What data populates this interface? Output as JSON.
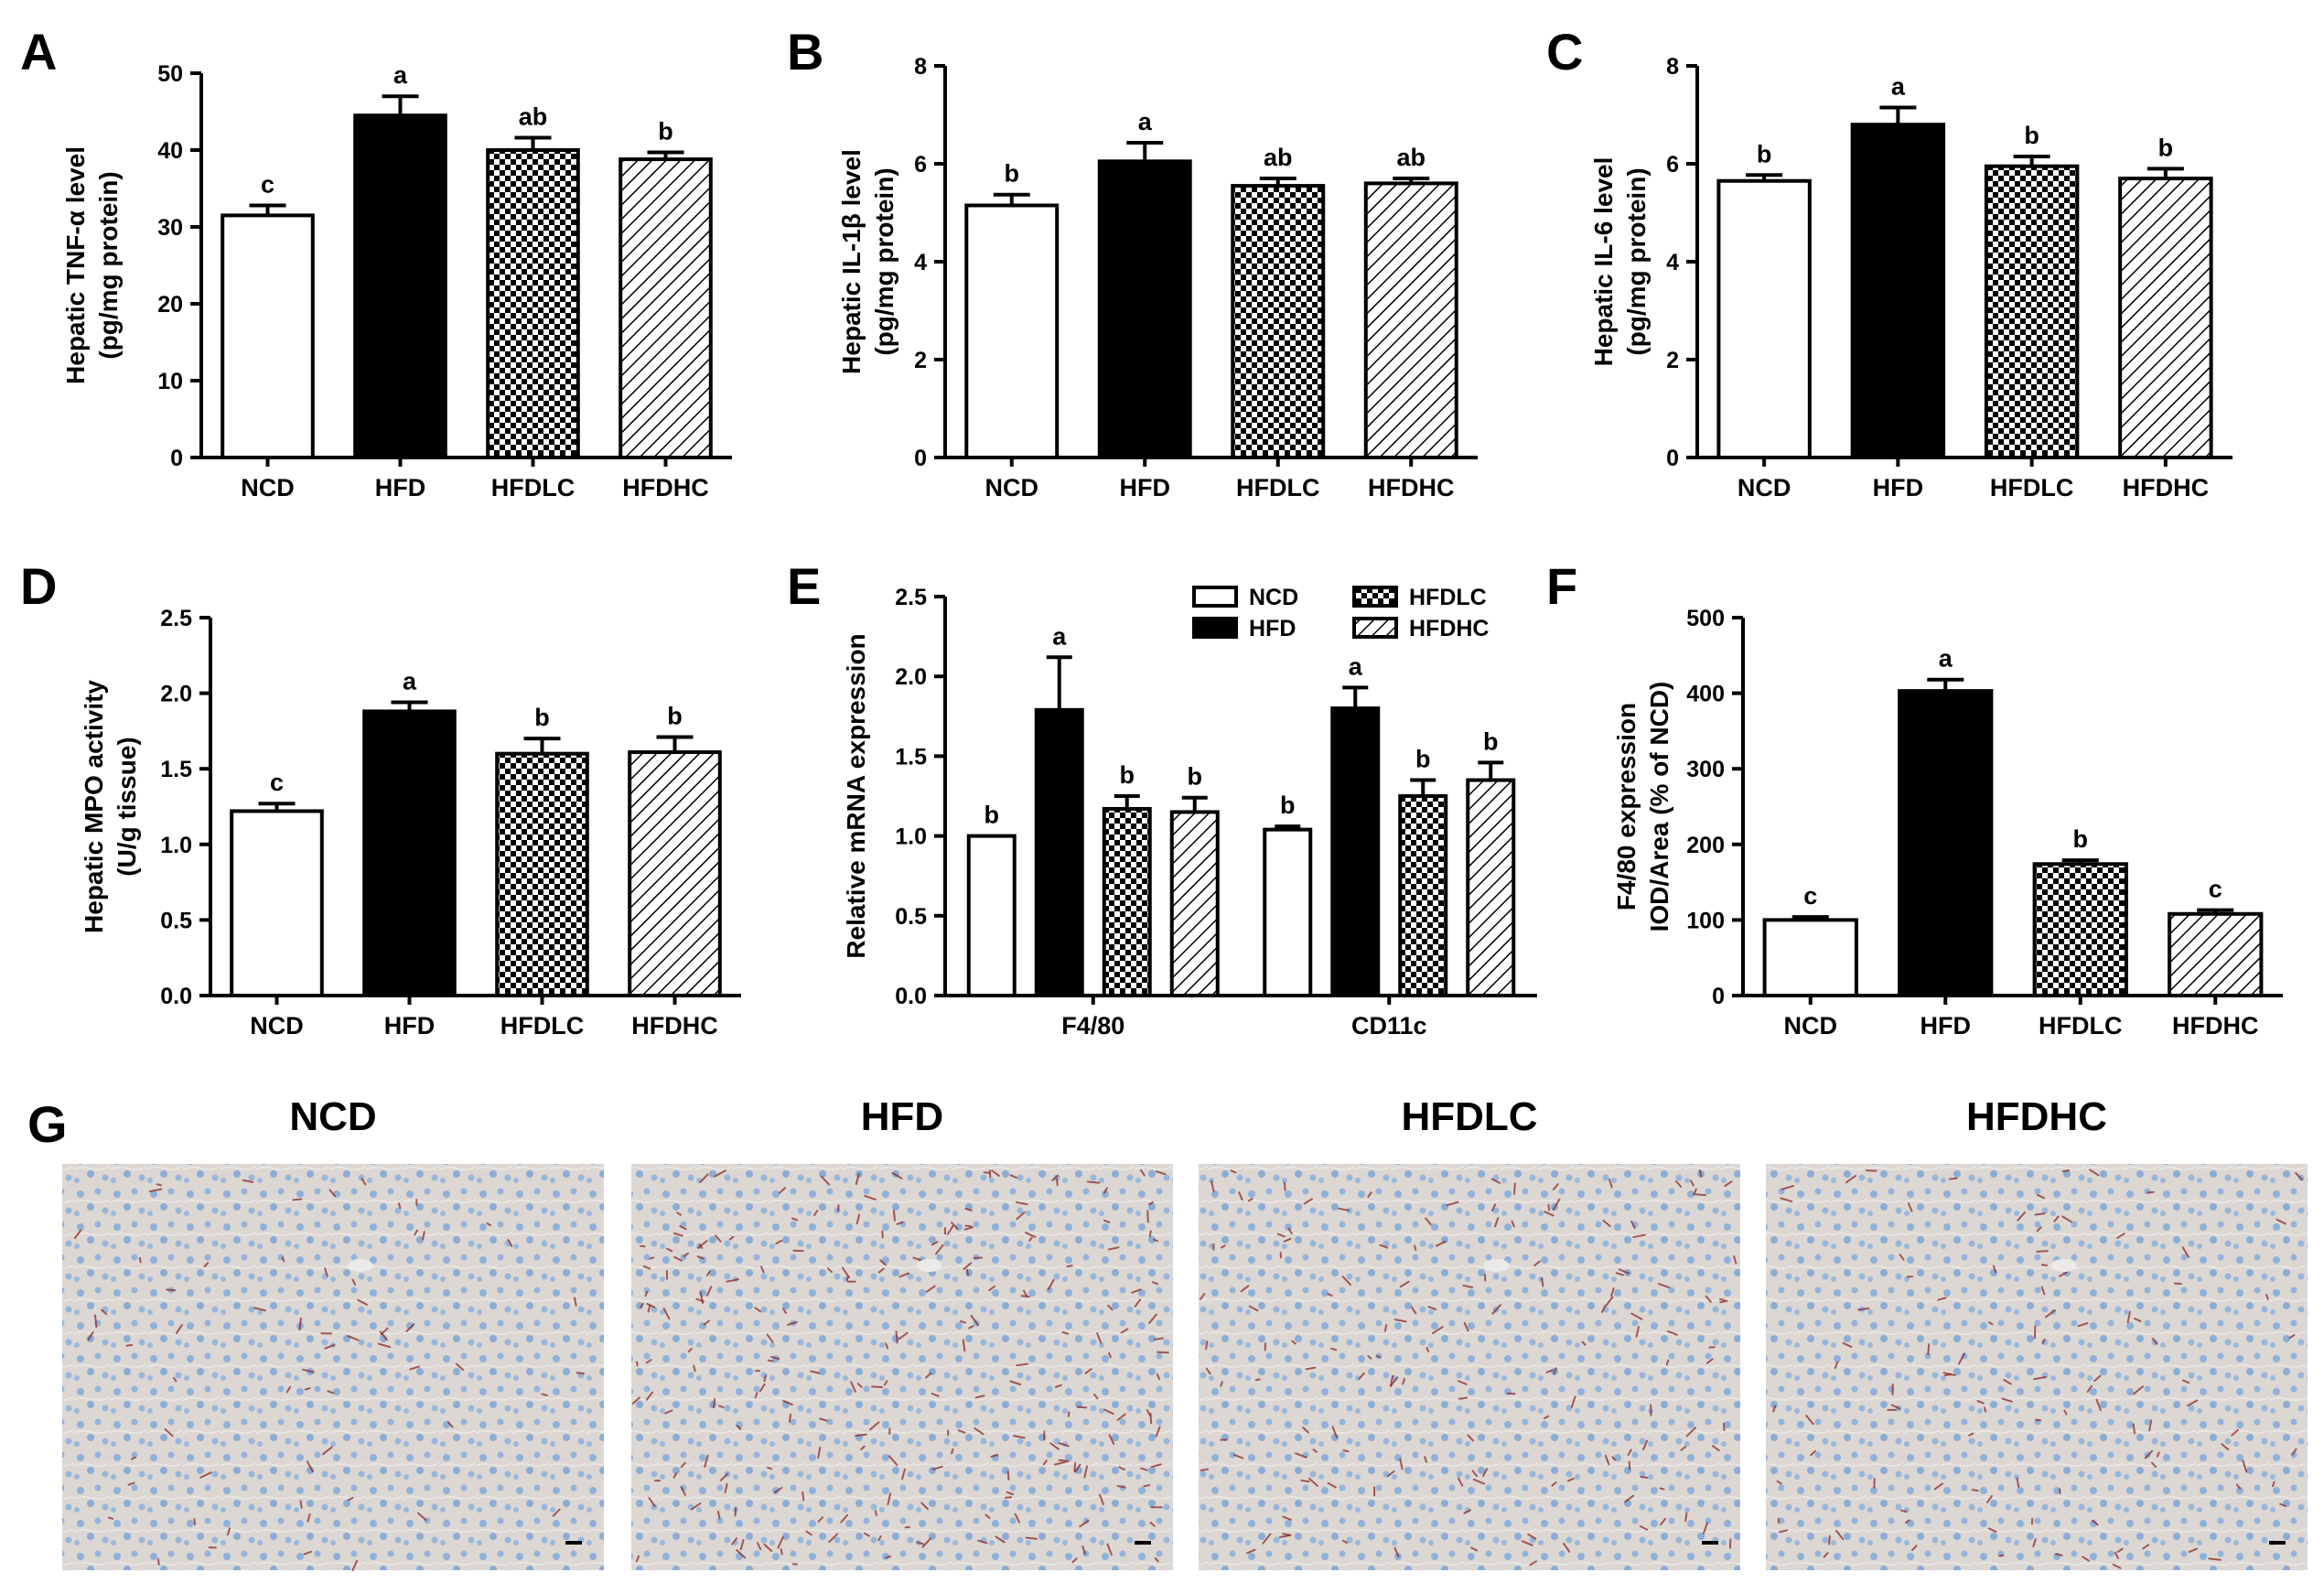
{
  "figure": {
    "panel_g": {
      "label": "G",
      "micrographs": [
        {
          "title": "NCD",
          "stain_level": 0.15
        },
        {
          "title": "HFD",
          "stain_level": 0.55
        },
        {
          "title": "HFDLC",
          "stain_level": 0.35
        },
        {
          "title": "HFDHC",
          "stain_level": 0.25
        }
      ]
    }
  },
  "colors": {
    "text": "#000000",
    "bar_open": "#ffffff",
    "bar_solid": "#000000",
    "micrograph_bg": "#dcd7d3",
    "nucleus": "#8fb0d8",
    "stain": "#8b2a2a"
  },
  "chart_data": [
    {
      "panel": "A",
      "type": "bar",
      "categories": [
        "NCD",
        "HFD",
        "HFDLC",
        "HFDHC"
      ],
      "values": [
        31.5,
        44.5,
        40.0,
        38.8
      ],
      "errors": [
        1.3,
        2.5,
        1.6,
        0.9
      ],
      "significance": [
        "c",
        "a",
        "ab",
        "b"
      ],
      "patterns": [
        "white",
        "black",
        "checker",
        "hatch"
      ],
      "ylabel": [
        "Hepatic TNF-α level",
        "(pg/mg protein)"
      ],
      "ylim": [
        0,
        50
      ],
      "yticks": [
        0,
        10,
        20,
        30,
        40,
        50
      ],
      "ytick_labels": [
        "0",
        "10",
        "20",
        "30",
        "40",
        "50"
      ]
    },
    {
      "panel": "B",
      "type": "bar",
      "categories": [
        "NCD",
        "HFD",
        "HFDLC",
        "HFDHC"
      ],
      "values": [
        5.15,
        6.05,
        5.55,
        5.6
      ],
      "errors": [
        0.22,
        0.38,
        0.15,
        0.1
      ],
      "significance": [
        "b",
        "a",
        "ab",
        "ab"
      ],
      "patterns": [
        "white",
        "black",
        "checker",
        "hatch"
      ],
      "ylabel": [
        "Hepatic IL-1β level",
        "(pg/mg protein)"
      ],
      "ylim": [
        0,
        8
      ],
      "yticks": [
        0,
        2,
        4,
        6,
        8
      ],
      "ytick_labels": [
        "0",
        "2",
        "4",
        "6",
        "8"
      ]
    },
    {
      "panel": "C",
      "type": "bar",
      "categories": [
        "NCD",
        "HFD",
        "HFDLC",
        "HFDHC"
      ],
      "values": [
        5.65,
        6.8,
        5.95,
        5.7
      ],
      "errors": [
        0.12,
        0.35,
        0.2,
        0.2
      ],
      "significance": [
        "b",
        "a",
        "b",
        "b"
      ],
      "patterns": [
        "white",
        "black",
        "checker",
        "hatch"
      ],
      "ylabel": [
        "Hepatic IL-6 level",
        "(pg/mg protein)"
      ],
      "ylim": [
        0,
        8
      ],
      "yticks": [
        0,
        2,
        4,
        6,
        8
      ],
      "ytick_labels": [
        "0",
        "2",
        "4",
        "6",
        "8"
      ]
    },
    {
      "panel": "D",
      "type": "bar",
      "categories": [
        "NCD",
        "HFD",
        "HFDLC",
        "HFDHC"
      ],
      "values": [
        1.22,
        1.88,
        1.6,
        1.61
      ],
      "errors": [
        0.05,
        0.06,
        0.1,
        0.1
      ],
      "significance": [
        "c",
        "a",
        "b",
        "b"
      ],
      "patterns": [
        "white",
        "black",
        "checker",
        "hatch"
      ],
      "ylabel": [
        "Hepatic MPO activity",
        "(U/g tissue)"
      ],
      "ylim": [
        0,
        2.5
      ],
      "yticks": [
        0,
        0.5,
        1.0,
        1.5,
        2.0,
        2.5
      ],
      "ytick_labels": [
        "0.0",
        "0.5",
        "1.0",
        "1.5",
        "2.0",
        "2.5"
      ]
    },
    {
      "panel": "E",
      "type": "bar",
      "categories": [
        "F4/80",
        "CD11c"
      ],
      "series": [
        {
          "name": "NCD",
          "pattern": "white",
          "values": [
            1.0,
            1.04
          ],
          "errors": [
            0,
            0.02
          ],
          "significance": [
            "b",
            "b"
          ]
        },
        {
          "name": "HFD",
          "pattern": "black",
          "values": [
            1.79,
            1.8
          ],
          "errors": [
            0.33,
            0.13
          ],
          "significance": [
            "a",
            "a"
          ]
        },
        {
          "name": "HFDLC",
          "pattern": "checker",
          "values": [
            1.17,
            1.25
          ],
          "errors": [
            0.08,
            0.1
          ],
          "significance": [
            "b",
            "b"
          ]
        },
        {
          "name": "HFDHC",
          "pattern": "hatch",
          "values": [
            1.15,
            1.35
          ],
          "errors": [
            0.09,
            0.11
          ],
          "significance": [
            "b",
            "b"
          ]
        }
      ],
      "legend_position": "top-right",
      "ylabel": [
        "Relative mRNA expression"
      ],
      "ylim": [
        0,
        2.5
      ],
      "yticks": [
        0,
        0.5,
        1.0,
        1.5,
        2.0,
        2.5
      ],
      "ytick_labels": [
        "0.0",
        "0.5",
        "1.0",
        "1.5",
        "2.0",
        "2.5"
      ]
    },
    {
      "panel": "F",
      "type": "bar",
      "categories": [
        "NCD",
        "HFD",
        "HFDLC",
        "HFDHC"
      ],
      "values": [
        100,
        403,
        174,
        108
      ],
      "errors": [
        4,
        15,
        5,
        5
      ],
      "significance": [
        "c",
        "a",
        "b",
        "c"
      ],
      "patterns": [
        "white",
        "black",
        "checker",
        "hatch"
      ],
      "ylabel": [
        "F4/80 expression",
        "IOD/Area (% of NCD)"
      ],
      "ylim": [
        0,
        500
      ],
      "yticks": [
        0,
        100,
        200,
        300,
        400,
        500
      ],
      "ytick_labels": [
        "0",
        "100",
        "200",
        "300",
        "400",
        "500"
      ]
    }
  ]
}
